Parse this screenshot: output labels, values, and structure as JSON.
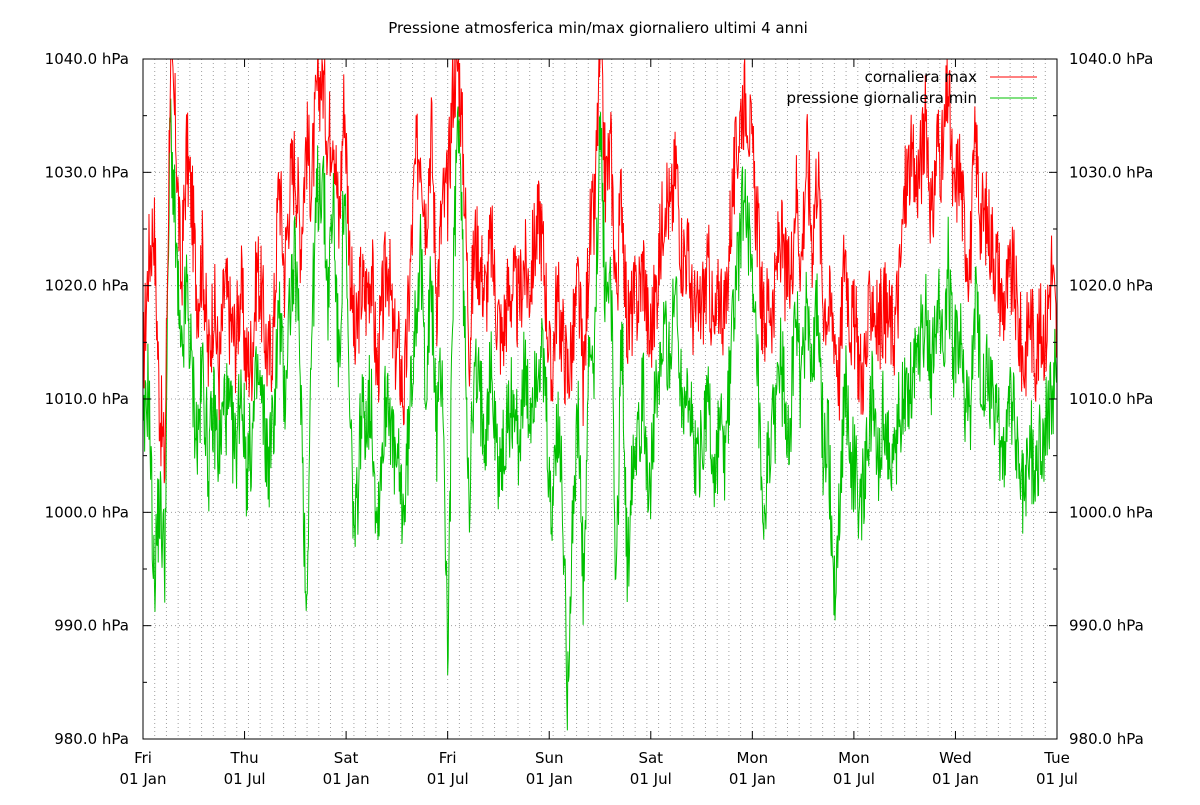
{
  "chart_data": {
    "type": "line",
    "title": "Pressione atmosferica min/max giornaliero ultimi 4 anni",
    "xlabel": "",
    "ylabel": "",
    "ylim": [
      980,
      1040
    ],
    "y_ticks": [
      "980.0 hPa",
      "990.0 hPa",
      "1000.0 hPa",
      "1010.0 hPa",
      "1020.0 hPa",
      "1030.0 hPa",
      "1040.0 hPa"
    ],
    "y_tick_values": [
      980,
      990,
      1000,
      1010,
      1020,
      1030,
      1040
    ],
    "y_ticks_right": true,
    "x_ticks": [
      {
        "day": "Fri",
        "date": "01 Jan"
      },
      {
        "day": "Thu",
        "date": "01 Jul"
      },
      {
        "day": "Sat",
        "date": "01 Jan"
      },
      {
        "day": "Fri",
        "date": "01 Jul"
      },
      {
        "day": "Sun",
        "date": "01 Jan"
      },
      {
        "day": "Sat",
        "date": "01 Jul"
      },
      {
        "day": "Mon",
        "date": "01 Jan"
      },
      {
        "day": "Mon",
        "date": "01 Jul"
      },
      {
        "day": "Wed",
        "date": "01 Jan"
      },
      {
        "day": "Tue",
        "date": "01 Jul"
      }
    ],
    "grid": true,
    "legend_position": "top-right",
    "colors": {
      "max": "#ff0000",
      "min": "#00c000"
    },
    "series": [
      {
        "name": "cornaliera max",
        "color": "#ff0000",
        "values": [
          1013,
          1022,
          1026,
          1010,
          1004,
          1039,
          1034,
          1020,
          1032,
          1027,
          1019,
          1023,
          1013,
          1019,
          1012,
          1020,
          1017,
          1015,
          1020,
          1013,
          1014,
          1022,
          1018,
          1013,
          1016,
          1030,
          1021,
          1029,
          1031,
          1024,
          1033,
          1029,
          1037,
          1039,
          1033,
          1035,
          1025,
          1037,
          1023,
          1014,
          1020,
          1019,
          1022,
          1012,
          1018,
          1023,
          1015,
          1014,
          1010,
          1020,
          1030,
          1033,
          1026,
          1034,
          1019,
          1027,
          1028,
          1038,
          1040,
          1030,
          1015,
          1024,
          1022,
          1019,
          1024,
          1018,
          1015,
          1019,
          1020,
          1018,
          1022,
          1020,
          1024,
          1026,
          1020,
          1011,
          1019,
          1016,
          1012,
          1015,
          1020,
          1011,
          1024,
          1026,
          1041,
          1029,
          1032,
          1019,
          1029,
          1016,
          1018,
          1019,
          1022,
          1015,
          1018,
          1023,
          1029,
          1026,
          1031,
          1023,
          1023,
          1018,
          1017,
          1019,
          1021,
          1015,
          1020,
          1017,
          1026,
          1031,
          1036,
          1037,
          1031,
          1025,
          1016,
          1019,
          1018,
          1025,
          1021,
          1020,
          1029,
          1022,
          1032,
          1024,
          1031,
          1019,
          1018,
          1017,
          1012,
          1024,
          1017,
          1016,
          1012,
          1014,
          1020,
          1016,
          1018,
          1017,
          1016,
          1020,
          1028,
          1031,
          1029,
          1031,
          1035,
          1025,
          1033,
          1031,
          1038,
          1027,
          1031,
          1025,
          1022,
          1033,
          1026,
          1026,
          1024,
          1022,
          1018,
          1020,
          1021,
          1016,
          1013,
          1018,
          1014,
          1016,
          1016,
          1022,
          1015
        ]
      },
      {
        "name": "pressione giornaliera min",
        "color": "#00c000",
        "values": [
          1005,
          1012,
          994,
          1001,
          996,
          1035,
          1024,
          1012,
          1020,
          1012,
          1006,
          1013,
          1004,
          1009,
          1005,
          1010,
          1008,
          1005,
          1012,
          1004,
          1006,
          1012,
          1009,
          1004,
          1008,
          1018,
          1010,
          1019,
          1022,
          1012,
          991,
          1016,
          1028,
          1030,
          1019,
          1028,
          1012,
          1029,
          1008,
          997,
          1008,
          1009,
          1010,
          999,
          1006,
          1012,
          1005,
          1003,
          1000,
          1008,
          1018,
          1022,
          1012,
          1020,
          1007,
          1014,
          987,
          1020,
          1036,
          1018,
          1002,
          1012,
          1010,
          1008,
          1013,
          1005,
          1004,
          1008,
          1010,
          1006,
          1012,
          1008,
          1012,
          1014,
          1010,
          998,
          1008,
          1003,
          985,
          1000,
          1008,
          992,
          1014,
          1012,
          1036,
          1018,
          1022,
          992,
          1018,
          994,
          1006,
          1008,
          1010,
          1002,
          1008,
          1012,
          1016,
          1014,
          1020,
          1010,
          1012,
          1006,
          1004,
          1008,
          1010,
          1002,
          1008,
          1004,
          1014,
          1020,
          1026,
          1028,
          1018,
          1012,
          995,
          1006,
          1007,
          1014,
          1010,
          1008,
          1018,
          1010,
          1020,
          1012,
          1018,
          1006,
          1006,
          993,
          1000,
          1012,
          1005,
          1004,
          1000,
          1004,
          1010,
          1004,
          1008,
          1006,
          1004,
          1009,
          1010,
          1012,
          1014,
          1016,
          1018,
          1012,
          1020,
          1014,
          1022,
          1014,
          1016,
          1010,
          1008,
          1018,
          1012,
          1012,
          1010,
          1008,
          1006,
          1008,
          1010,
          1004,
          1002,
          1006,
          1004,
          1006,
          1008,
          1010,
          1014
        ]
      }
    ]
  }
}
